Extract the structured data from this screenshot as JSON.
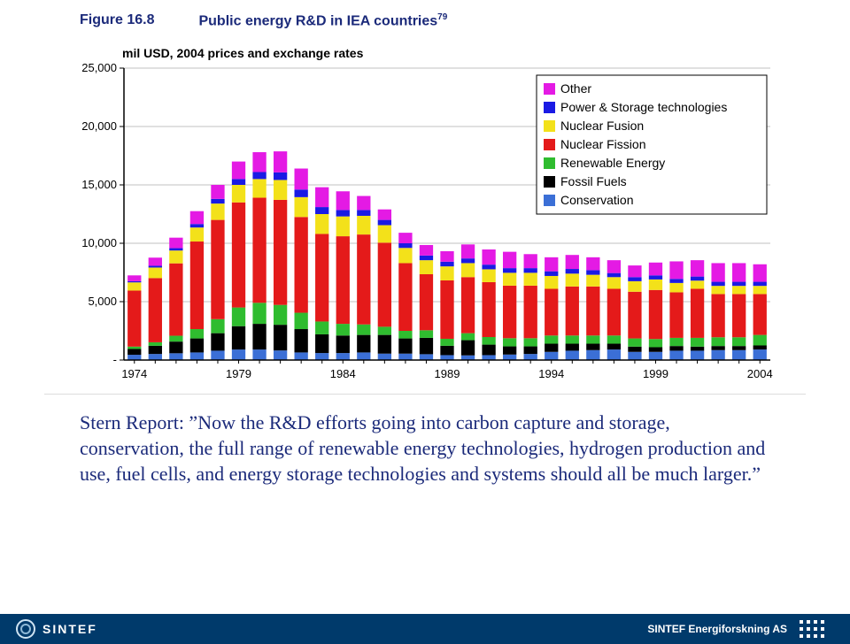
{
  "header": {
    "figure_no": "Figure 16.8",
    "figure_title": "Public energy R&D in IEA countries",
    "superscript": "79"
  },
  "chart": {
    "type": "stacked-bar",
    "y_title": "mil USD, 2004 prices and exchange rates",
    "y_title_fontsize": 14,
    "y_title_color": "#000000",
    "background_color": "#ffffff",
    "plot_area_color": "#ffffff",
    "grid_color": "#c0c0c0",
    "axis_color": "#000000",
    "ylim": [
      0,
      25000
    ],
    "ytick_step": 5000,
    "yticks": [
      "-",
      "5,000",
      "10,000",
      "15,000",
      "20,000",
      "25,000"
    ],
    "ytick_fontsize": 13,
    "x_labels_shown": [
      "1974",
      "1979",
      "1984",
      "1989",
      "1994",
      "1999",
      "2004"
    ],
    "x_label_step": 5,
    "all_years": [
      "1974",
      "1975",
      "1976",
      "1977",
      "1978",
      "1979",
      "1980",
      "1981",
      "1982",
      "1983",
      "1984",
      "1985",
      "1986",
      "1987",
      "1988",
      "1989",
      "1990",
      "1991",
      "1992",
      "1993",
      "1994",
      "1995",
      "1996",
      "1997",
      "1998",
      "1999",
      "2000",
      "2001",
      "2002",
      "2003",
      "2004"
    ],
    "xtick_fontsize": 13,
    "bar_width": 0.65,
    "series": [
      {
        "key": "conservation",
        "label": "Conservation",
        "color": "#3b6fd6"
      },
      {
        "key": "fossil",
        "label": "Fossil Fuels",
        "color": "#000000"
      },
      {
        "key": "renewable",
        "label": "Renewable Energy",
        "color": "#2fbc2f"
      },
      {
        "key": "fission",
        "label": "Nuclear Fission",
        "color": "#e41a1a"
      },
      {
        "key": "fusion",
        "label": "Nuclear Fusion",
        "color": "#f3e11a"
      },
      {
        "key": "power",
        "label": "Power & Storage technologies",
        "color": "#1a1ae4"
      },
      {
        "key": "other",
        "label": "Other",
        "color": "#e41ae4"
      }
    ],
    "legend": {
      "position": "top-right-inside",
      "border_color": "#000000",
      "background": "#ffffff",
      "fontsize": 14,
      "swatch_size": 13,
      "order": [
        "other",
        "power",
        "fusion",
        "fission",
        "renewable",
        "fossil",
        "conservation"
      ]
    },
    "data": {
      "conservation": [
        450,
        520,
        580,
        650,
        800,
        900,
        900,
        820,
        650,
        600,
        600,
        650,
        550,
        550,
        500,
        420,
        400,
        420,
        470,
        520,
        700,
        800,
        850,
        900,
        700,
        700,
        800,
        800,
        850,
        850,
        900
      ],
      "fossil": [
        500,
        700,
        1000,
        1200,
        1500,
        2000,
        2200,
        2200,
        2000,
        1600,
        1500,
        1500,
        1600,
        1300,
        1400,
        800,
        1300,
        900,
        700,
        650,
        700,
        600,
        550,
        500,
        450,
        400,
        400,
        350,
        350,
        350,
        350
      ],
      "renewable": [
        200,
        300,
        500,
        800,
        1200,
        1600,
        1800,
        1700,
        1400,
        1100,
        1000,
        900,
        700,
        650,
        650,
        600,
        600,
        650,
        700,
        700,
        700,
        700,
        700,
        700,
        700,
        700,
        700,
        750,
        750,
        750,
        900
      ],
      "fission": [
        4800,
        5500,
        6200,
        7500,
        8500,
        9000,
        9000,
        9000,
        8200,
        7500,
        7500,
        7700,
        7200,
        5800,
        4800,
        5000,
        4800,
        4700,
        4500,
        4500,
        4000,
        4200,
        4200,
        4000,
        4000,
        4200,
        3900,
        4200,
        3700,
        3700,
        3500
      ],
      "fusion": [
        700,
        900,
        1100,
        1200,
        1400,
        1500,
        1600,
        1700,
        1700,
        1700,
        1700,
        1600,
        1500,
        1300,
        1200,
        1200,
        1200,
        1100,
        1100,
        1100,
        1100,
        1100,
        1000,
        1000,
        900,
        900,
        800,
        700,
        700,
        700,
        700
      ],
      "power": [
        100,
        150,
        200,
        300,
        400,
        500,
        600,
        650,
        650,
        600,
        550,
        500,
        450,
        400,
        400,
        400,
        400,
        400,
        400,
        400,
        400,
        400,
        400,
        350,
        350,
        350,
        350,
        350,
        350,
        350,
        350
      ],
      "other": [
        500,
        700,
        900,
        1100,
        1200,
        1500,
        1700,
        1800,
        1800,
        1700,
        1600,
        1200,
        900,
        900,
        900,
        900,
        1200,
        1300,
        1400,
        1200,
        1200,
        1200,
        1100,
        1100,
        1000,
        1100,
        1500,
        1400,
        1600,
        1600,
        1500
      ]
    }
  },
  "quote": "Stern Report: ”Now the R&D efforts going into carbon capture and storage, conservation, the full range of renewable energy technologies, hydrogen production and use, fuel cells, and energy storage technologies and systems should all be much larger.”",
  "footer": {
    "logo_text": "SINTEF",
    "right_text": "SINTEF Energiforskning AS"
  }
}
